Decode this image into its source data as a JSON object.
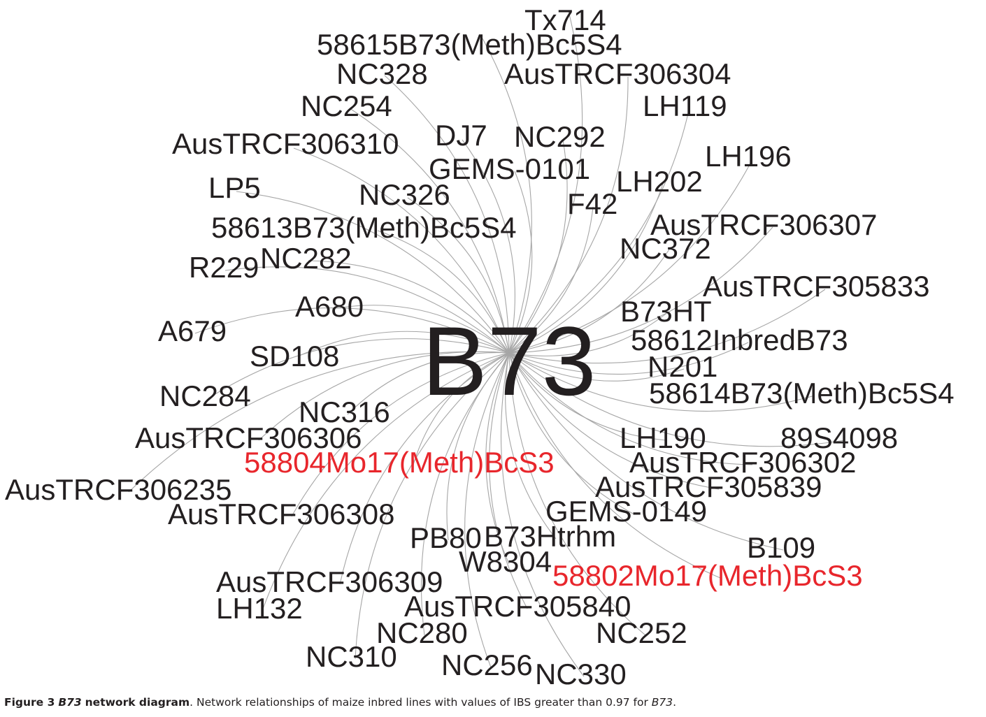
{
  "diagram": {
    "center": {
      "label": "B73",
      "color": "#231f20"
    },
    "label_color": "#231f20",
    "highlight_color": "#e8262c",
    "edge_color": "#a6a6a6",
    "nodes": [
      {
        "id": "tx714",
        "label": "Tx714"
      },
      {
        "id": "58615b73",
        "label": "58615B73(Meth)Bc5S4"
      },
      {
        "id": "nc328",
        "label": "NC328"
      },
      {
        "id": "austrcf306304",
        "label": "AusTRCF306304"
      },
      {
        "id": "nc254",
        "label": "NC254"
      },
      {
        "id": "lh119",
        "label": "LH119"
      },
      {
        "id": "austrcf306310",
        "label": "AusTRCF306310"
      },
      {
        "id": "dj7",
        "label": "DJ7"
      },
      {
        "id": "nc292",
        "label": "NC292"
      },
      {
        "id": "lh196",
        "label": "LH196"
      },
      {
        "id": "gems0101",
        "label": "GEMS-0101"
      },
      {
        "id": "lp5",
        "label": "LP5"
      },
      {
        "id": "lh202",
        "label": "LH202"
      },
      {
        "id": "nc326",
        "label": "NC326"
      },
      {
        "id": "f42",
        "label": "F42"
      },
      {
        "id": "austrcf306307",
        "label": "AusTRCF306307"
      },
      {
        "id": "58613b73",
        "label": "58613B73(Meth)Bc5S4"
      },
      {
        "id": "nc372",
        "label": "NC372"
      },
      {
        "id": "r229",
        "label": "R229"
      },
      {
        "id": "nc282",
        "label": "NC282"
      },
      {
        "id": "austrcf305833",
        "label": "AusTRCF305833"
      },
      {
        "id": "a680",
        "label": "A680"
      },
      {
        "id": "b73ht",
        "label": "B73HT"
      },
      {
        "id": "a679",
        "label": "A679"
      },
      {
        "id": "58612inbredb73",
        "label": "58612InbredB73"
      },
      {
        "id": "sd108",
        "label": "SD108"
      },
      {
        "id": "n201",
        "label": "N201"
      },
      {
        "id": "58614b73",
        "label": "58614B73(Meth)Bc5S4"
      },
      {
        "id": "nc284",
        "label": "NC284"
      },
      {
        "id": "nc316",
        "label": "NC316"
      },
      {
        "id": "austrcf306306",
        "label": "AusTRCF306306"
      },
      {
        "id": "lh190",
        "label": "LH190"
      },
      {
        "id": "89s4098",
        "label": "89S4098"
      },
      {
        "id": "58804mo17",
        "label": "58804Mo17(Meth)BcS3",
        "highlight": true
      },
      {
        "id": "austrcf306302",
        "label": "AusTRCF306302"
      },
      {
        "id": "austrcf306235",
        "label": "AusTRCF306235"
      },
      {
        "id": "austrcf305839",
        "label": "AusTRCF305839"
      },
      {
        "id": "austrcf306308",
        "label": "AusTRCF306308"
      },
      {
        "id": "gems0149",
        "label": "GEMS-0149"
      },
      {
        "id": "pb80",
        "label": "PB80"
      },
      {
        "id": "b73htrhm",
        "label": "B73Htrhm"
      },
      {
        "id": "b109",
        "label": "B109"
      },
      {
        "id": "w8304",
        "label": "W8304"
      },
      {
        "id": "58802mo17",
        "label": "58802Mo17(Meth)BcS3",
        "highlight": true
      },
      {
        "id": "austrcf306309",
        "label": "AusTRCF306309"
      },
      {
        "id": "lh132",
        "label": "LH132"
      },
      {
        "id": "austrcf305840",
        "label": "AusTRCF305840"
      },
      {
        "id": "nc280",
        "label": "NC280"
      },
      {
        "id": "nc252",
        "label": "NC252"
      },
      {
        "id": "nc310",
        "label": "NC310"
      },
      {
        "id": "nc256",
        "label": "NC256"
      },
      {
        "id": "nc330",
        "label": "NC330"
      }
    ]
  },
  "caption": {
    "figure_label": "Figure 3",
    "title_italic": "B73",
    "title_rest": "network diagram",
    "text": ". Network relationships of maize inbred lines with values of IBS greater than 0.97 for ",
    "text_italic": "B73",
    "text_end": "."
  }
}
